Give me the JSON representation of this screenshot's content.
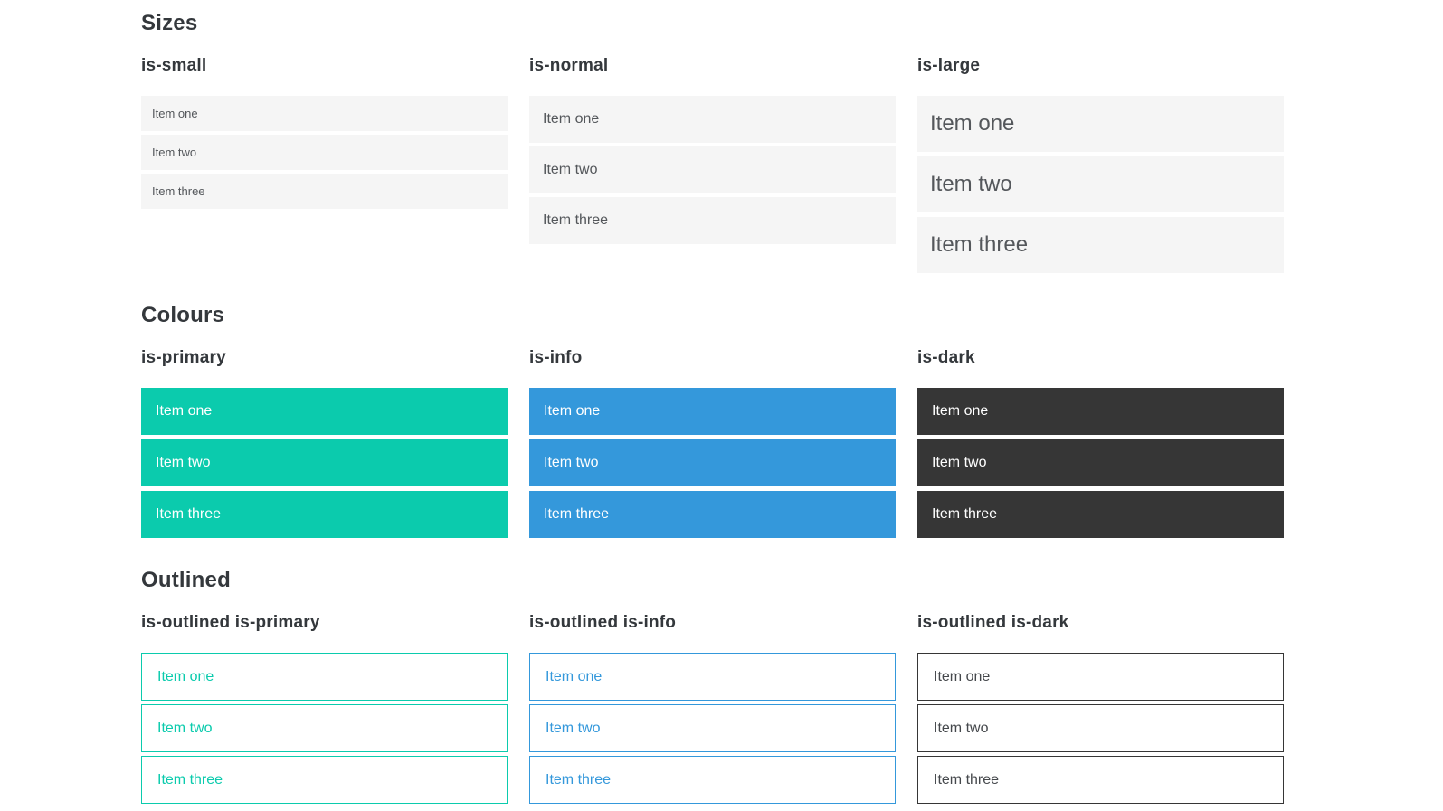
{
  "colors": {
    "primary": "#0bcbad",
    "info": "#3498db",
    "dark": "#363636",
    "item_bg": "#f5f5f5",
    "item_text": "#54575b",
    "heading_text": "#34383c",
    "outlined_dark_text": "#45484c",
    "white": "#ffffff"
  },
  "sections": [
    {
      "title": "Sizes",
      "groups": [
        {
          "label": "is-small",
          "items": [
            "Item one",
            "Item two",
            "Item three"
          ]
        },
        {
          "label": "is-normal",
          "items": [
            "Item one",
            "Item two",
            "Item three"
          ]
        },
        {
          "label": "is-large",
          "items": [
            "Item one",
            "Item two",
            "Item three"
          ]
        }
      ]
    },
    {
      "title": "Colours",
      "groups": [
        {
          "label": "is-primary",
          "items": [
            "Item one",
            "Item two",
            "Item three"
          ]
        },
        {
          "label": "is-info",
          "items": [
            "Item one",
            "Item two",
            "Item three"
          ]
        },
        {
          "label": "is-dark",
          "items": [
            "Item one",
            "Item two",
            "Item three"
          ]
        }
      ]
    },
    {
      "title": "Outlined",
      "groups": [
        {
          "label": "is-outlined is-primary",
          "items": [
            "Item one",
            "Item two",
            "Item three"
          ]
        },
        {
          "label": "is-outlined is-info",
          "items": [
            "Item one",
            "Item two",
            "Item three"
          ]
        },
        {
          "label": "is-outlined is-dark",
          "items": [
            "Item one",
            "Item two",
            "Item three"
          ]
        }
      ]
    }
  ]
}
